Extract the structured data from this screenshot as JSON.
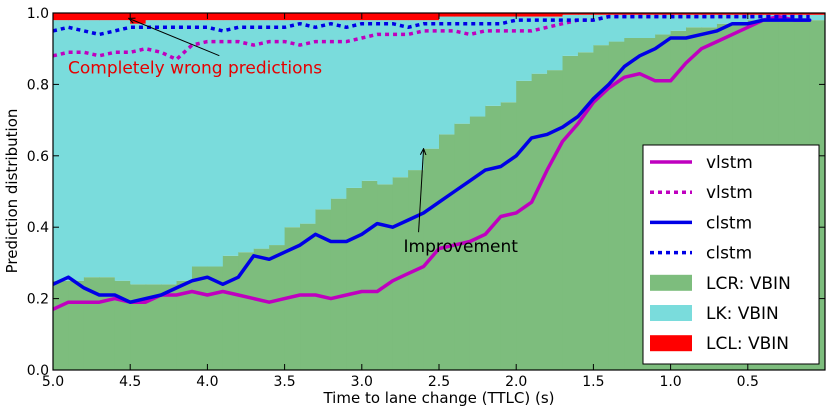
{
  "chart_data": {
    "type": "area",
    "xlabel": "Time to lane change (TTLC) (s)",
    "ylabel": "Prediction distribution",
    "xlim": [
      5.0,
      0.0
    ],
    "ylim": [
      0.0,
      1.0
    ],
    "x_axis_reversed": true,
    "xticks": [
      "5.0",
      "4.5",
      "4.0",
      "3.5",
      "3.0",
      "2.5",
      "2.0",
      "1.5",
      "1.0",
      "0.5"
    ],
    "yticks": [
      "0.0",
      "0.2",
      "0.4",
      "0.6",
      "0.8",
      "1.0"
    ],
    "grid": false,
    "legend_placement": "lower-right",
    "colors": {
      "vlstm": "#bf00bf",
      "clstm": "#0000e6",
      "LCR": "#7dbd7d",
      "LK": "#7adcdc",
      "LCL": "#ff0000",
      "annot_wrong": "#e60000",
      "annot_improve": "#000000"
    },
    "stacked_bars": {
      "x": [
        5.0,
        4.9,
        4.8,
        4.7,
        4.6,
        4.5,
        4.4,
        4.3,
        4.2,
        4.1,
        4.0,
        3.9,
        3.8,
        3.7,
        3.6,
        3.5,
        3.4,
        3.3,
        3.2,
        3.1,
        3.0,
        2.9,
        2.8,
        2.7,
        2.6,
        2.5,
        2.4,
        2.3,
        2.2,
        2.1,
        2.0,
        1.9,
        1.8,
        1.7,
        1.6,
        1.5,
        1.4,
        1.3,
        1.2,
        1.1,
        1.0,
        0.9,
        0.8,
        0.7,
        0.6,
        0.5,
        0.4,
        0.3,
        0.2,
        0.1
      ],
      "LCR": [
        0.25,
        0.25,
        0.26,
        0.26,
        0.25,
        0.24,
        0.24,
        0.24,
        0.25,
        0.29,
        0.29,
        0.32,
        0.33,
        0.34,
        0.35,
        0.4,
        0.41,
        0.45,
        0.48,
        0.51,
        0.53,
        0.52,
        0.54,
        0.56,
        0.62,
        0.66,
        0.69,
        0.71,
        0.74,
        0.75,
        0.81,
        0.83,
        0.84,
        0.88,
        0.89,
        0.91,
        0.92,
        0.93,
        0.93,
        0.94,
        0.95,
        0.96,
        0.96,
        0.97,
        0.97,
        0.98,
        0.98,
        0.98,
        0.98,
        0.98
      ],
      "LCL": [
        0.02,
        0.02,
        0.02,
        0.02,
        0.02,
        0.03,
        0.02,
        0.02,
        0.02,
        0.02,
        0.02,
        0.02,
        0.02,
        0.02,
        0.02,
        0.02,
        0.02,
        0.02,
        0.02,
        0.02,
        0.02,
        0.02,
        0.02,
        0.02,
        0.02,
        0.01,
        0.01,
        0.01,
        0.01,
        0.01,
        0.01,
        0.01,
        0.01,
        0.005,
        0.005,
        0.005,
        0.005,
        0.005,
        0.005,
        0.005,
        0.005,
        0.005,
        0.005,
        0.005,
        0.005,
        0.005,
        0.005,
        0.005,
        0.005,
        0.005
      ]
    },
    "series": [
      {
        "name": "vlstm",
        "metric": "LCR",
        "style": "solid",
        "values": [
          0.17,
          0.19,
          0.19,
          0.19,
          0.2,
          0.19,
          0.19,
          0.21,
          0.21,
          0.22,
          0.21,
          0.22,
          0.21,
          0.2,
          0.19,
          0.2,
          0.21,
          0.21,
          0.2,
          0.21,
          0.22,
          0.22,
          0.25,
          0.27,
          0.29,
          0.34,
          0.35,
          0.36,
          0.38,
          0.43,
          0.44,
          0.47,
          0.56,
          0.64,
          0.69,
          0.75,
          0.79,
          0.82,
          0.83,
          0.81,
          0.81,
          0.86,
          0.9,
          0.92,
          0.94,
          0.96,
          0.98,
          0.99,
          0.98,
          0.98
        ]
      },
      {
        "name": "vlstm",
        "metric": "LK",
        "style": "dotted",
        "values": [
          0.88,
          0.89,
          0.89,
          0.88,
          0.89,
          0.89,
          0.9,
          0.89,
          0.87,
          0.91,
          0.92,
          0.92,
          0.92,
          0.91,
          0.92,
          0.92,
          0.91,
          0.92,
          0.92,
          0.92,
          0.93,
          0.94,
          0.94,
          0.94,
          0.95,
          0.95,
          0.95,
          0.94,
          0.95,
          0.95,
          0.95,
          0.95,
          0.96,
          0.97,
          0.98,
          0.98,
          0.99,
          0.99,
          0.99,
          0.99,
          0.99,
          0.99,
          0.99,
          0.99,
          0.99,
          0.99,
          0.99,
          0.99,
          0.99,
          0.99
        ]
      },
      {
        "name": "clstm",
        "metric": "LCR",
        "style": "solid",
        "values": [
          0.24,
          0.26,
          0.23,
          0.21,
          0.21,
          0.19,
          0.2,
          0.21,
          0.23,
          0.25,
          0.26,
          0.24,
          0.26,
          0.32,
          0.31,
          0.33,
          0.35,
          0.38,
          0.36,
          0.36,
          0.38,
          0.41,
          0.4,
          0.42,
          0.44,
          0.47,
          0.5,
          0.53,
          0.56,
          0.57,
          0.6,
          0.65,
          0.66,
          0.68,
          0.71,
          0.76,
          0.8,
          0.85,
          0.88,
          0.9,
          0.93,
          0.93,
          0.94,
          0.95,
          0.97,
          0.97,
          0.98,
          0.98,
          0.98,
          0.98
        ]
      },
      {
        "name": "clstm",
        "metric": "LK",
        "style": "dotted",
        "values": [
          0.95,
          0.96,
          0.95,
          0.94,
          0.95,
          0.96,
          0.96,
          0.96,
          0.96,
          0.96,
          0.96,
          0.95,
          0.96,
          0.96,
          0.96,
          0.96,
          0.97,
          0.96,
          0.97,
          0.96,
          0.97,
          0.97,
          0.97,
          0.96,
          0.97,
          0.97,
          0.97,
          0.97,
          0.97,
          0.97,
          0.98,
          0.98,
          0.98,
          0.98,
          0.98,
          0.98,
          0.99,
          0.99,
          0.99,
          0.99,
          0.99,
          0.99,
          0.99,
          0.99,
          0.99,
          0.99,
          0.99,
          0.99,
          0.99,
          0.99
        ]
      }
    ],
    "legend": [
      {
        "label": "vlstm",
        "kind": "line",
        "style": "solid",
        "color_key": "vlstm"
      },
      {
        "label": "vlstm",
        "kind": "line",
        "style": "dotted",
        "color_key": "vlstm"
      },
      {
        "label": "clstm",
        "kind": "line",
        "style": "solid",
        "color_key": "clstm"
      },
      {
        "label": "clstm",
        "kind": "line",
        "style": "dotted",
        "color_key": "clstm"
      },
      {
        "label": "LCR: VBIN",
        "kind": "patch",
        "color_key": "LCR"
      },
      {
        "label": "LK: VBIN",
        "kind": "patch",
        "color_key": "LK"
      },
      {
        "label": "LCL: VBIN",
        "kind": "patch",
        "color_key": "LCL"
      }
    ],
    "annotations": [
      {
        "text": "Completely wrong predictions",
        "color_key": "annot_wrong",
        "text_x": 4.7,
        "text_y": 0.83,
        "arrow_x": 4.51,
        "arrow_y": 0.985
      },
      {
        "text": "Improvement",
        "color_key": "annot_improve",
        "text_x": 2.6,
        "text_y": 0.33,
        "arrow_x": 2.6,
        "arrow_y": 0.62
      }
    ]
  }
}
